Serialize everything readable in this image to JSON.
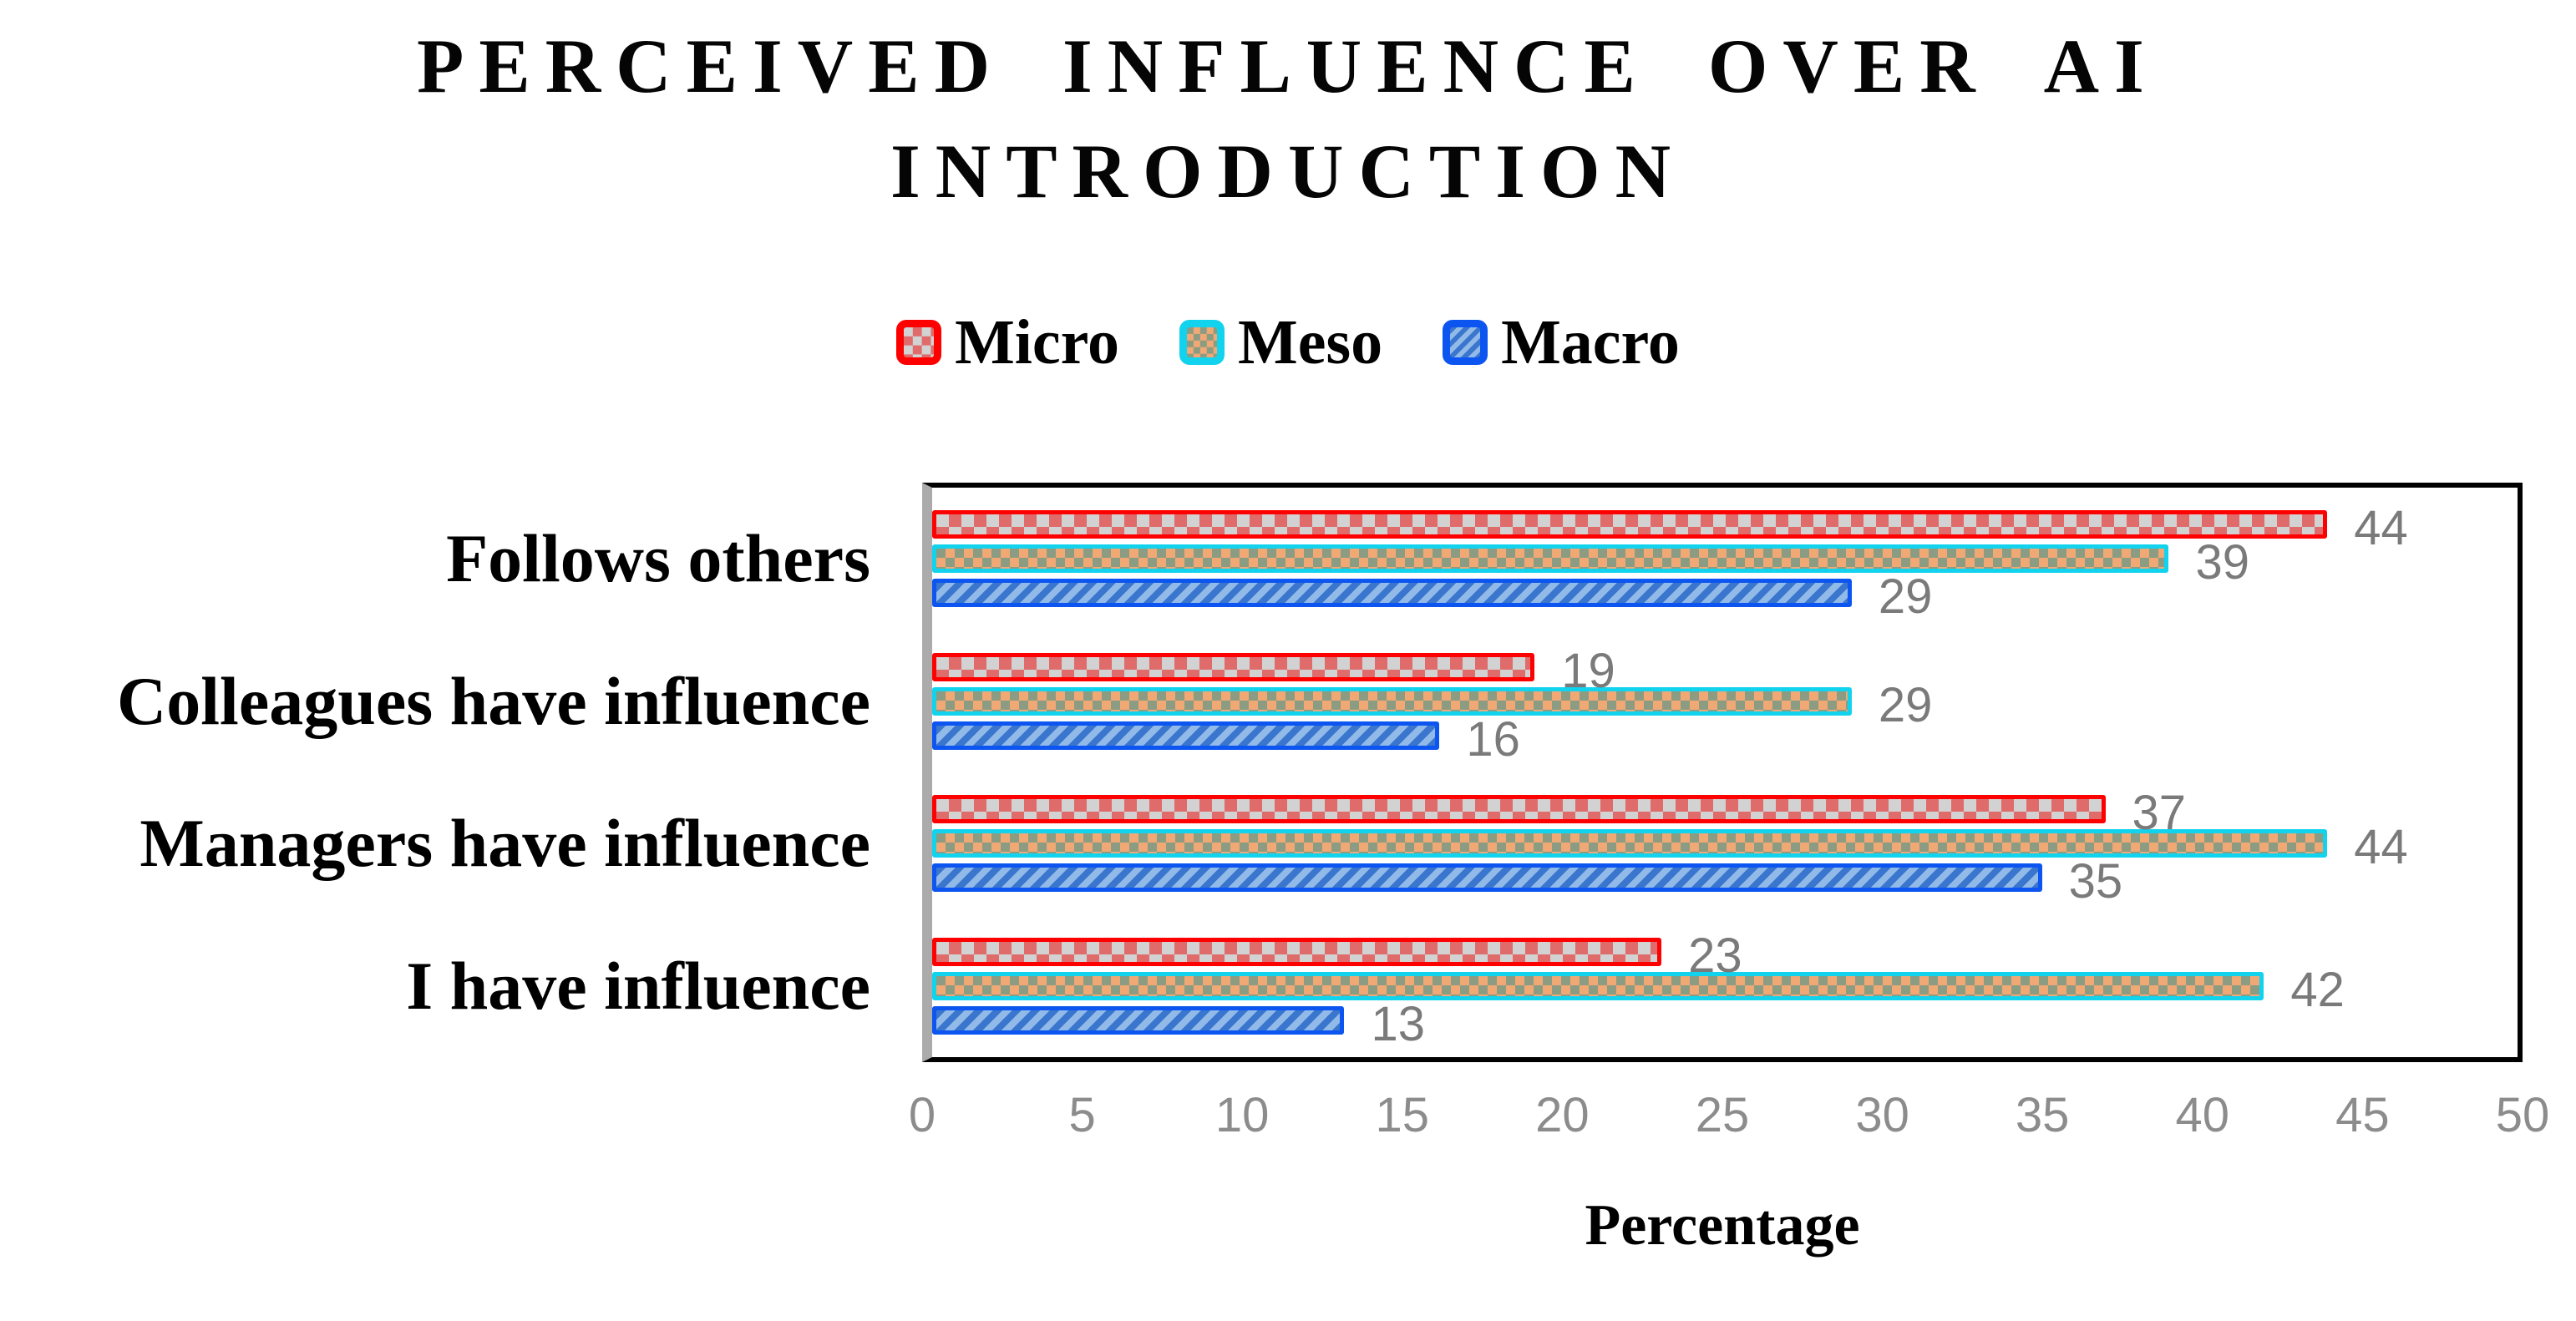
{
  "title": {
    "line1": "PERCEIVED INFLUENCE OVER AI",
    "line2": "INTRODUCTION"
  },
  "chart_data": {
    "type": "bar",
    "orientation": "horizontal",
    "title": "PERCEIVED INFLUENCE OVER AI INTRODUCTION",
    "xlabel": "Percentage",
    "ylabel": "",
    "xlim": [
      0,
      50
    ],
    "xticks": [
      0,
      5,
      10,
      15,
      20,
      25,
      30,
      35,
      40,
      45,
      50
    ],
    "grid": false,
    "legend_position": "top",
    "categories": [
      "Follows others",
      "Colleagues have influence",
      "Managers have influence",
      "I have influence"
    ],
    "series": [
      {
        "name": "Micro",
        "values": [
          44,
          19,
          37,
          23
        ],
        "pattern": "checker-large",
        "border_color": "#FE0000",
        "fill_color_a": "#DF6B6B",
        "fill_color_b": "#D2D2D2"
      },
      {
        "name": "Meso",
        "values": [
          39,
          29,
          44,
          42
        ],
        "pattern": "checker-small",
        "border_color": "#12D3EE",
        "fill_color_a": "#F0A875",
        "fill_color_b": "#8C9C82"
      },
      {
        "name": "Macro",
        "values": [
          29,
          16,
          35,
          13
        ],
        "pattern": "diagonal-stripes",
        "border_color": "#0C55F0",
        "fill_color_a": "#92BAE8",
        "fill_color_b": "#3A76CE"
      }
    ],
    "colors": {
      "plot_border": "#000000",
      "axis_line": "#ABABAB",
      "tick_label": "#8C8C8C",
      "value_label": "#7A7A7A",
      "title_text": "#050505"
    }
  }
}
